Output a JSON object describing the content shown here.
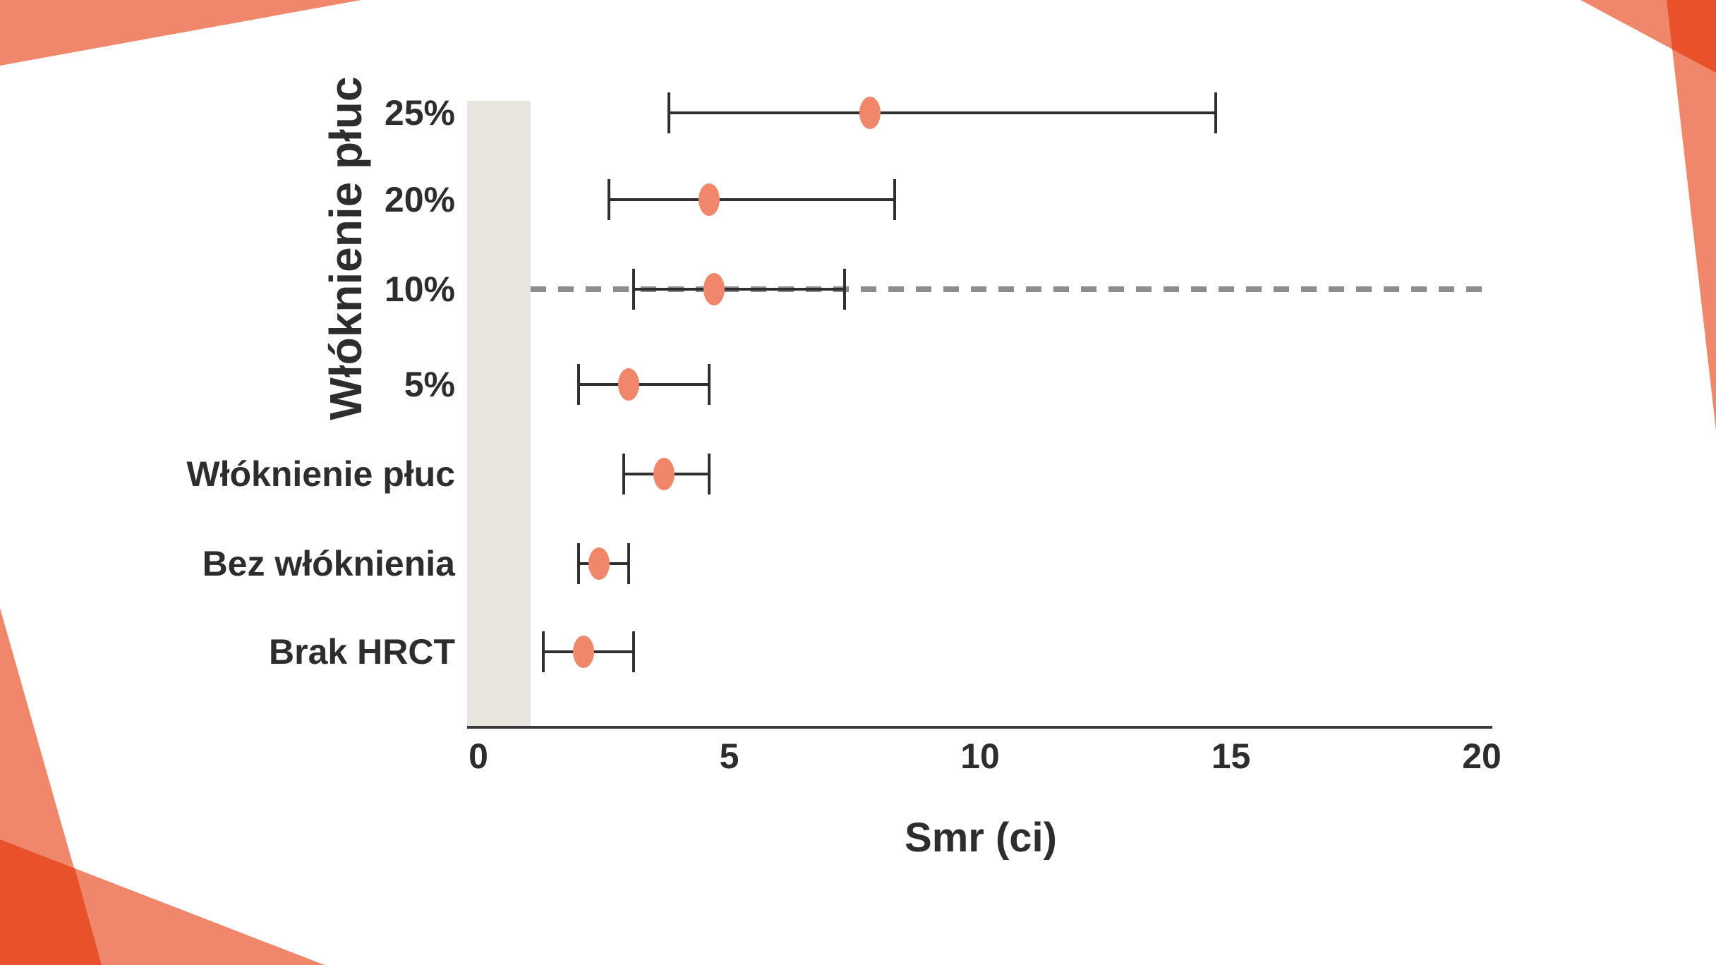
{
  "page": {
    "background": "#ffffff"
  },
  "colors": {
    "accent_salmon": "#F0876A",
    "accent_dark_overlap": "#E85129",
    "reference_band_gray": "#E8E5DF",
    "dashed_line_gray": "#8C8C8C",
    "error_bar_dark": "#2F2F2F",
    "axis_dark": "#3A3A3A",
    "marker_salmon": "#F0876B",
    "text": "#2D2D2D"
  },
  "chart_data": {
    "type": "scatter",
    "subtype": "forest-plot-with-error-bars",
    "title": "",
    "xlabel": "Smr (ci)",
    "ylabel": "Włóknienie płuc",
    "xlim": [
      0,
      20
    ],
    "x_ticks": [
      "0",
      "5",
      "10",
      "15",
      "20"
    ],
    "x_tick_values": [
      0,
      5,
      10,
      15,
      20
    ],
    "grid": false,
    "legend": "none",
    "reference_band": {
      "x_from": 0,
      "x_to": 1.05
    },
    "reference_line": {
      "at_row": "10%",
      "x_from": 1.05,
      "x_to": 20,
      "style": "dashed"
    },
    "rows": [
      {
        "label": "25%",
        "value": 7.8,
        "ci_low": 3.8,
        "ci_high": 14.7,
        "dashed_reference": false
      },
      {
        "label": "20%",
        "value": 4.6,
        "ci_low": 2.6,
        "ci_high": 8.3,
        "dashed_reference": false
      },
      {
        "label": "10%",
        "value": 4.7,
        "ci_low": 3.1,
        "ci_high": 7.3,
        "dashed_reference": true
      },
      {
        "label": "5%",
        "value": 3.0,
        "ci_low": 2.0,
        "ci_high": 4.6,
        "dashed_reference": false
      },
      {
        "label": "Włóknienie płuc",
        "value": 3.7,
        "ci_low": 2.9,
        "ci_high": 4.6,
        "dashed_reference": false
      },
      {
        "label": "Bez włóknienia",
        "value": 2.4,
        "ci_low": 2.0,
        "ci_high": 3.0,
        "dashed_reference": false
      },
      {
        "label": "Brak HRCT",
        "value": 2.1,
        "ci_low": 1.3,
        "ci_high": 3.1,
        "dashed_reference": false
      }
    ]
  }
}
